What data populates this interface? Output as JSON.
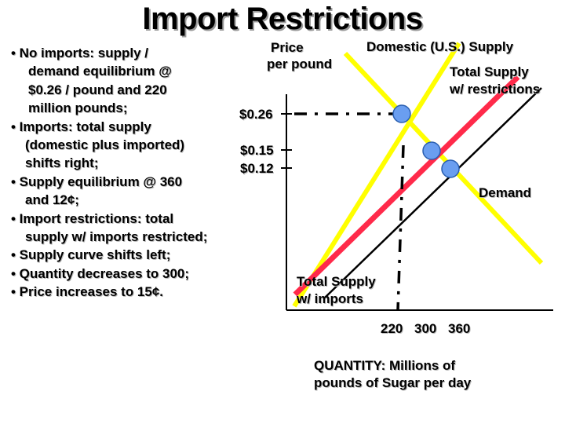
{
  "slide": {
    "title": "Import Restrictions",
    "bullets": [
      [
        "• No imports: supply /",
        "demand equilibrium @",
        "$0.26 / pound and 220",
        "million pounds;"
      ],
      [
        "• Imports: total supply",
        "(domestic plus imported)",
        "shifts right;"
      ],
      [
        "• Supply equilibrium @ 360",
        "and 12¢;"
      ],
      [
        "• Import restrictions: total",
        "supply w/ imports restricted;"
      ],
      [
        "• Supply curve shifts left;"
      ],
      [
        "• Quantity decreases to 300;"
      ],
      [
        "• Price increases to 15¢."
      ]
    ]
  },
  "diagram": {
    "y_axis_label": [
      "Price",
      "per pound"
    ],
    "x_axis_label": [
      "QUANTITY: Millions of",
      "pounds of Sugar per day"
    ],
    "price_ticks": [
      "$0.26",
      "$0.15",
      "$0.12"
    ],
    "quantity_ticks": [
      "220",
      "300",
      "360"
    ],
    "curves": {
      "domestic_supply": "Domestic (U.S.) Supply",
      "restricted_supply": [
        "Total Supply",
        "w/ restrictions"
      ],
      "demand": "Demand",
      "import_supply": [
        "Total Supply",
        "w/ imports"
      ]
    },
    "colors": {
      "domestic_supply": "#ffff00",
      "restricted_supply": "#ff2a4a",
      "import_supply": "#000000",
      "demand": "#ffff00",
      "equilibrium_point": "#6a9ef0",
      "dashes": "#000000"
    }
  }
}
